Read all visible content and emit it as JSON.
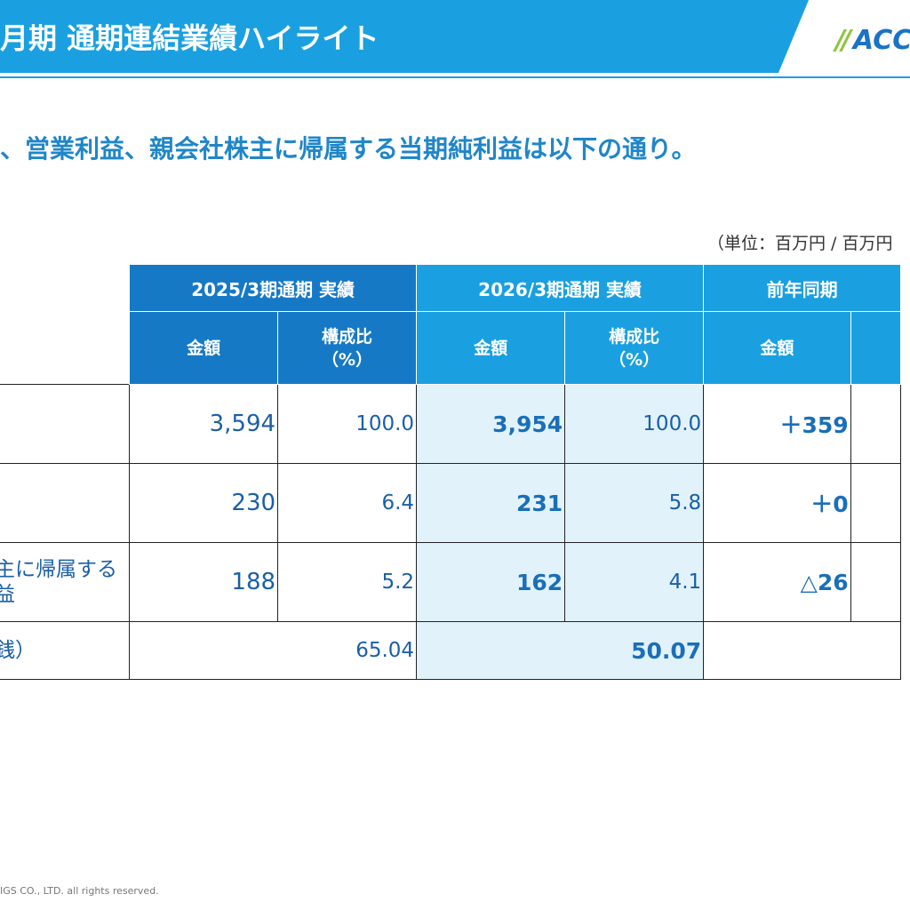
{
  "header": {
    "title": "月期 通期連結業績ハイライト",
    "logo_text": "ACC",
    "colors": {
      "bar": "#1aa0e0",
      "underline": "#1aa0e0",
      "logo": "#1a73c4",
      "logo_mark": "#8cc63f"
    }
  },
  "lead_text": "、営業利益、親会社株主に帰属する当期純利益は以下の通り。",
  "unit_text": "（単位：百万円 / 百万円",
  "table": {
    "col_groups": [
      "2025/3期通期 実績",
      "2026/3期通期 実績",
      "前年同期"
    ],
    "sub_headers": {
      "amount": "金額",
      "ratio_line1": "構成比",
      "ratio_line2": "（%）"
    },
    "rows": [
      {
        "label_line1": "",
        "label_line2": "",
        "a2025": "3,594",
        "r2025": "100.0",
        "a2026": "3,954",
        "r2026": "100.0",
        "yoy": "＋359"
      },
      {
        "label_line1": "",
        "label_line2": "",
        "a2025": "230",
        "r2025": "6.4",
        "a2026": "231",
        "r2026": "5.8",
        "yoy": "＋0"
      },
      {
        "label_line1": "主に帰属する",
        "label_line2": "益",
        "a2025": "188",
        "r2025": "5.2",
        "a2026": "162",
        "r2026": "4.1",
        "yoy": "△26"
      }
    ],
    "eps_row": {
      "label": "銭）",
      "v2025": "65.04",
      "v2026": "50.07"
    }
  },
  "footer": "IGS CO., LTD. all rights reserved."
}
